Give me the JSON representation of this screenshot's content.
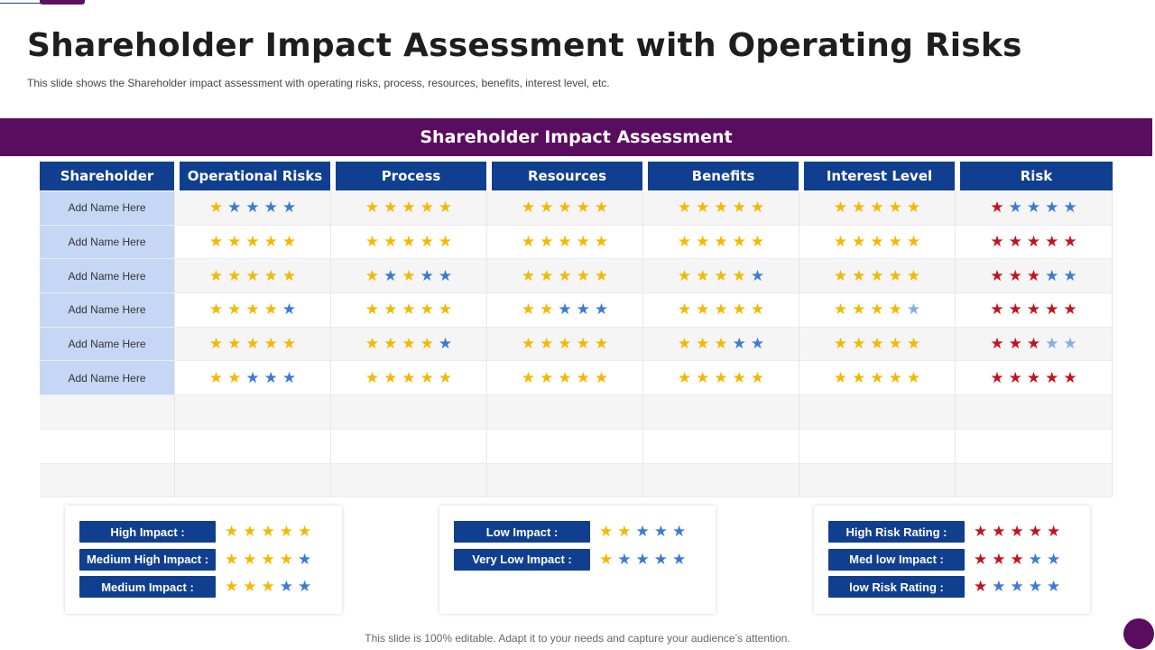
{
  "title": "Shareholder Impact Assessment with Operating Risks",
  "subtitle": "This slide shows the Shareholder impact assessment with operating risks, process, resources, benefits, interest level, etc.",
  "banner": "Shareholder Impact Assessment",
  "colors": {
    "yellow": "#f5b800",
    "blue": "#3a7bd5",
    "lightblue": "#7fb0e8",
    "red": "#c4121f"
  },
  "star_glyph": "★",
  "table": {
    "headers": [
      "Shareholder",
      "Operational Risks",
      "Process",
      "Resources",
      "Benefits",
      "Interest Level",
      "Risk"
    ],
    "rows": [
      {
        "name": "Add Name Here",
        "ratings": [
          "YBBBB",
          "YYYYY",
          "YYYYY",
          "YYYYY",
          "YYYYY",
          "RBBBB"
        ]
      },
      {
        "name": "Add Name Here",
        "ratings": [
          "YYYYY",
          "YYYYY",
          "YYYYY",
          "YYYYY",
          "YYYYY",
          "RRRRR"
        ]
      },
      {
        "name": "Add Name Here",
        "ratings": [
          "YYYYY",
          "YBYBB",
          "YYYYY",
          "YYYYB",
          "YYYYY",
          "RRRBB"
        ]
      },
      {
        "name": "Add Name Here",
        "ratings": [
          "YYYYB",
          "YYYYY",
          "YYBBB",
          "YYYYY",
          "YYYYL",
          "RRRRR"
        ]
      },
      {
        "name": "Add Name Here",
        "ratings": [
          "YYYYY",
          "YYYYB",
          "YYYYY",
          "YYYBB",
          "YYYYY",
          "RRRLL"
        ]
      },
      {
        "name": "Add Name Here",
        "ratings": [
          "YYBBB",
          "YYYYY",
          "YYYYY",
          "YYYYY",
          "YYYYY",
          "RRRRR"
        ]
      }
    ],
    "empty_rows": 3
  },
  "legends": [
    {
      "items": [
        {
          "label": "High Impact :",
          "stars": "YYYYY"
        },
        {
          "label": "Medium High Impact :",
          "stars": "YYYYB"
        },
        {
          "label": "Medium Impact :",
          "stars": "YYYBB"
        }
      ]
    },
    {
      "items": [
        {
          "label": "Low Impact :",
          "stars": "YYBBB"
        },
        {
          "label": "Very Low Impact :",
          "stars": "YBBBB"
        }
      ]
    },
    {
      "items": [
        {
          "label": "High Risk Rating :",
          "stars": "RRRRR"
        },
        {
          "label": "Med low Impact :",
          "stars": "RRRBB"
        },
        {
          "label": "low Risk Rating :",
          "stars": "RBBBB"
        }
      ]
    }
  ],
  "footer": "This slide is 100% editable. Adapt it to your needs and capture your audience’s attention."
}
